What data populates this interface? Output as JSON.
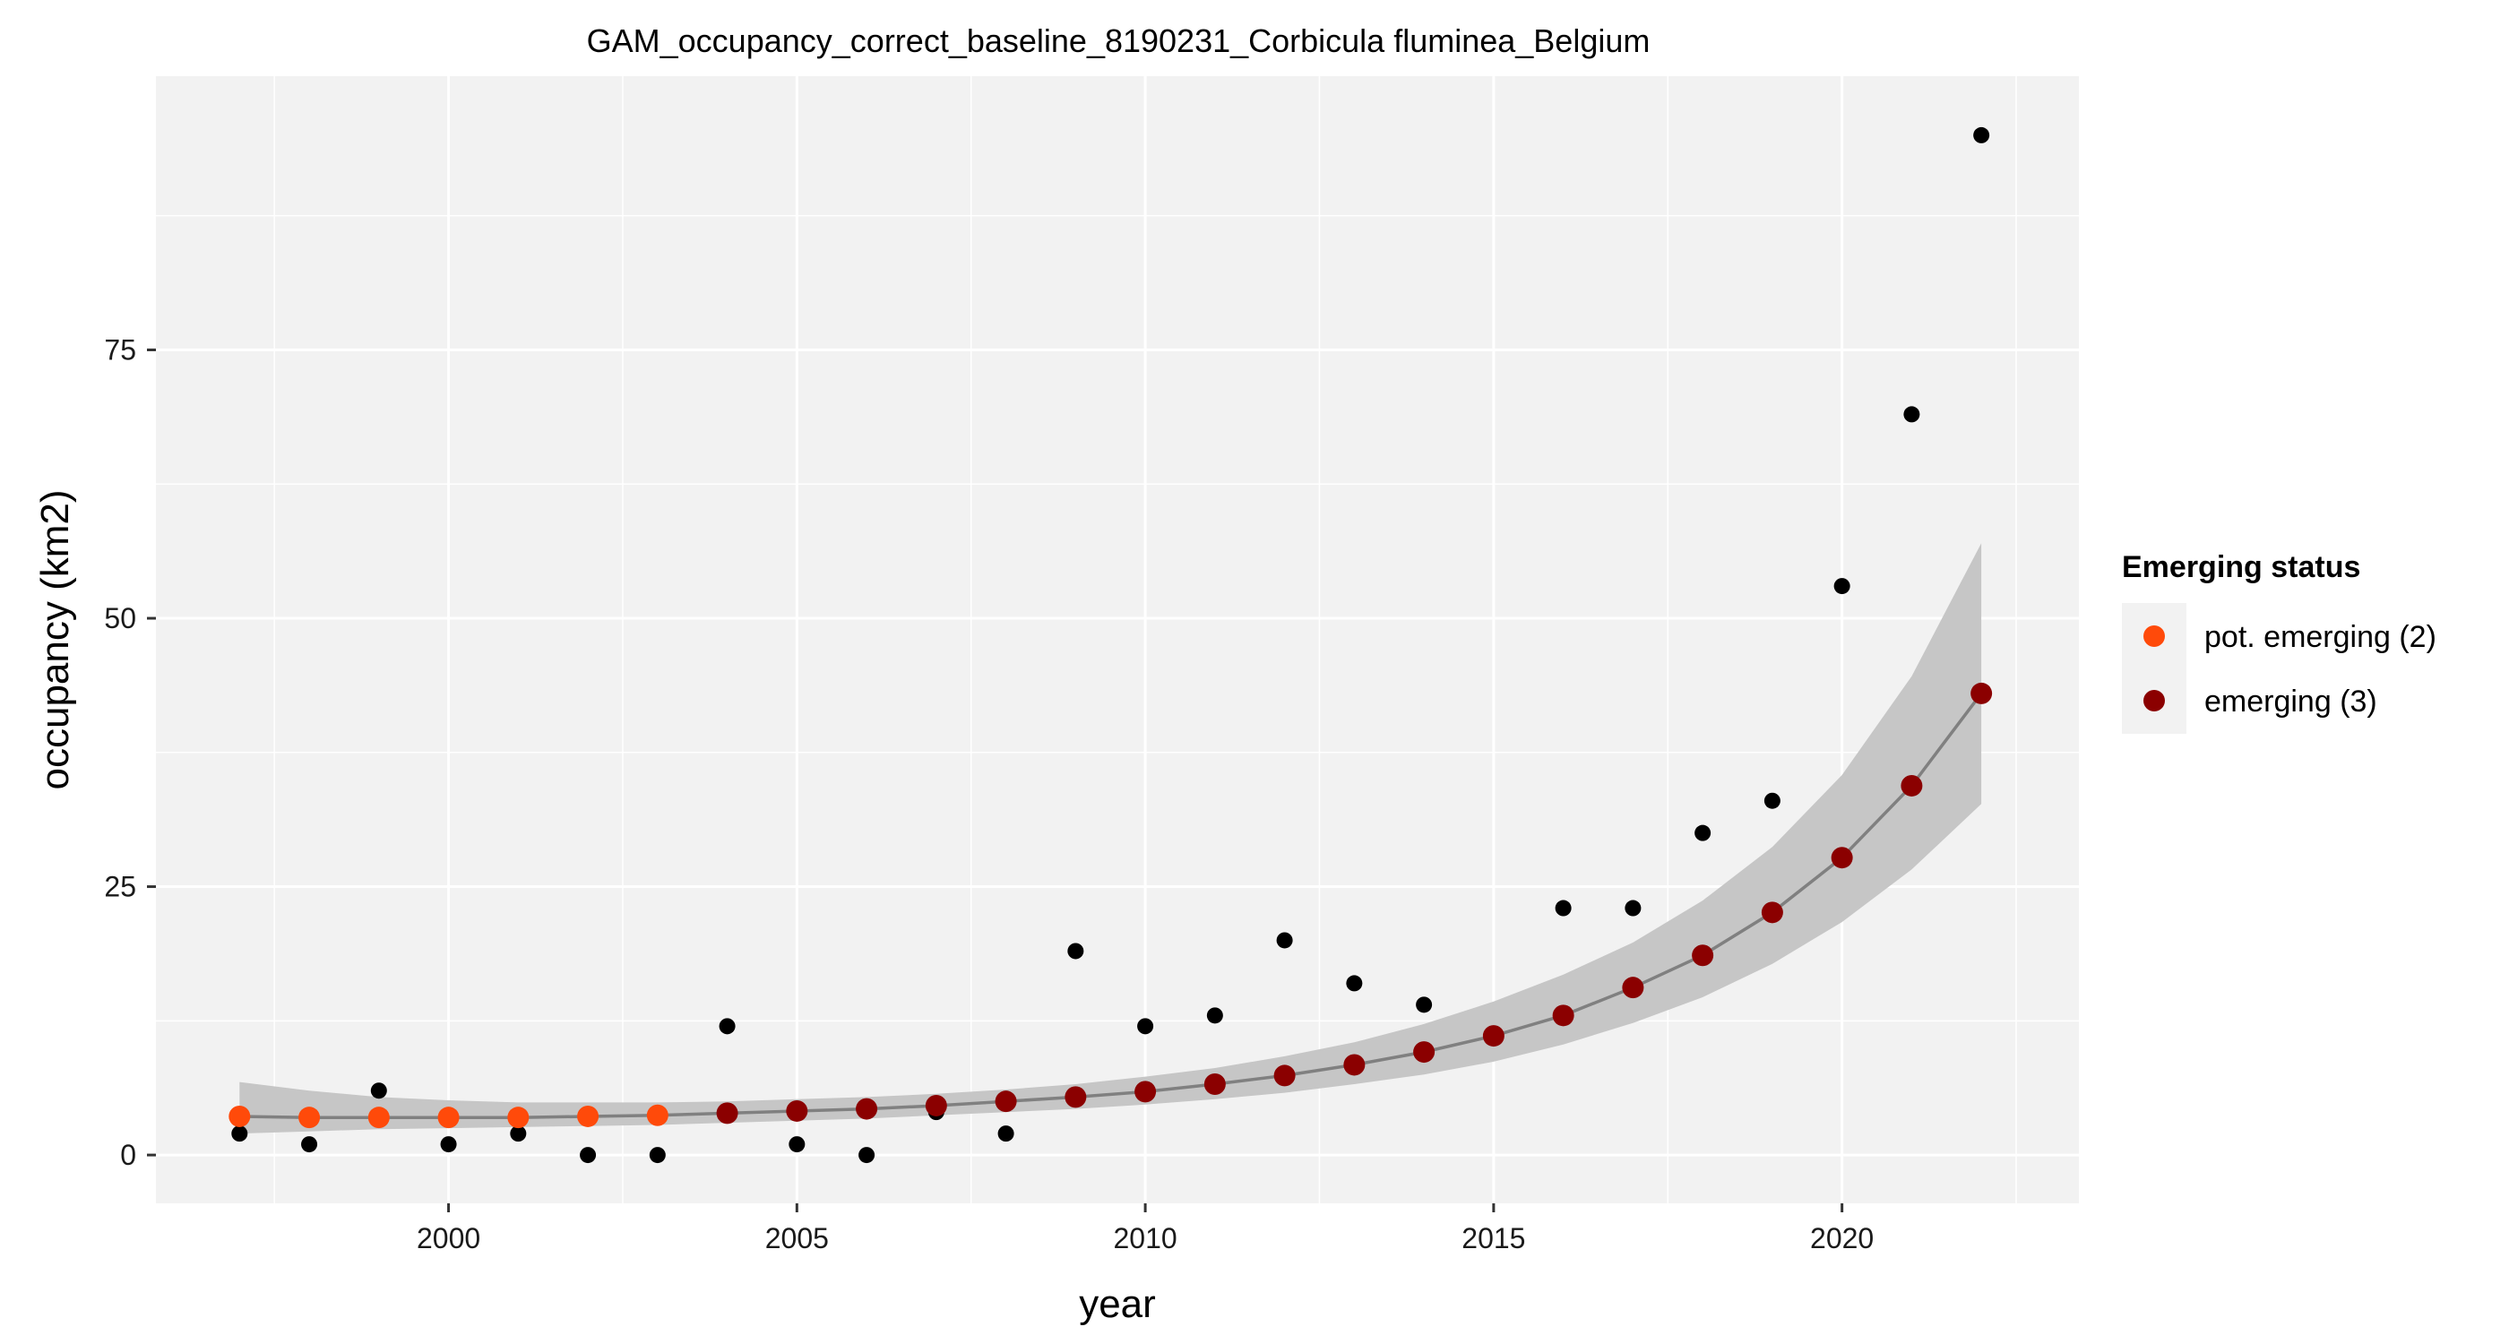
{
  "chart_data": {
    "type": "scatter",
    "title": "GAM_occupancy_correct_baseline_8190231_Corbicula fluminea_Belgium",
    "xlabel": "year",
    "ylabel": "occupancy (km2)",
    "xlim": [
      1995.8,
      2023.4
    ],
    "ylim": [
      -4.5,
      100.5
    ],
    "x_ticks": [
      2000,
      2005,
      2010,
      2015,
      2020
    ],
    "y_ticks": [
      0,
      25,
      50,
      75
    ],
    "grid": true,
    "legend": {
      "title": "Emerging status",
      "placement": "right",
      "entries": [
        {
          "label": "pot. emerging (2)",
          "color": "#FF4A0A"
        },
        {
          "label": "emerging (3)",
          "color": "#8B0000"
        }
      ]
    },
    "observed": {
      "color": "#000000",
      "x": [
        1997,
        1998,
        1999,
        2000,
        2001,
        2002,
        2003,
        2004,
        2005,
        2006,
        2007,
        2008,
        2009,
        2010,
        2011,
        2012,
        2013,
        2014,
        2015,
        2016,
        2017,
        2018,
        2019,
        2020,
        2021,
        2022
      ],
      "y": [
        2,
        1,
        6,
        1,
        2,
        0,
        0,
        12,
        1,
        0,
        4,
        2,
        19,
        12,
        13,
        20,
        16,
        14,
        11,
        23,
        23,
        30,
        33,
        53,
        69,
        95
      ]
    },
    "fitted": {
      "line_color": "#808080",
      "band_color": "#C6C6C6",
      "x": [
        1997,
        1998,
        1999,
        2000,
        2001,
        2002,
        2003,
        2004,
        2005,
        2006,
        2007,
        2008,
        2009,
        2010,
        2011,
        2012,
        2013,
        2014,
        2015,
        2016,
        2017,
        2018,
        2019,
        2020,
        2021,
        2022
      ],
      "y": [
        3.6,
        3.5,
        3.5,
        3.5,
        3.5,
        3.6,
        3.7,
        3.9,
        4.1,
        4.3,
        4.6,
        5.0,
        5.4,
        5.9,
        6.6,
        7.4,
        8.4,
        9.6,
        11.1,
        13.0,
        15.6,
        18.6,
        22.6,
        27.7,
        34.4,
        43.0
      ],
      "lower": [
        2.0,
        2.2,
        2.4,
        2.5,
        2.6,
        2.7,
        2.8,
        3.0,
        3.2,
        3.4,
        3.7,
        4.0,
        4.3,
        4.7,
        5.2,
        5.8,
        6.6,
        7.5,
        8.7,
        10.3,
        12.3,
        14.7,
        17.8,
        21.7,
        26.6,
        32.7
      ],
      "upper": [
        6.8,
        6.0,
        5.4,
        5.1,
        4.9,
        4.9,
        4.9,
        5.0,
        5.2,
        5.4,
        5.7,
        6.1,
        6.6,
        7.3,
        8.1,
        9.2,
        10.5,
        12.2,
        14.3,
        16.8,
        19.8,
        23.7,
        28.7,
        35.4,
        44.6,
        57.0
      ],
      "status": [
        2,
        2,
        2,
        2,
        2,
        2,
        2,
        3,
        3,
        3,
        3,
        3,
        3,
        3,
        3,
        3,
        3,
        3,
        3,
        3,
        3,
        3,
        3,
        3,
        3,
        3
      ]
    }
  }
}
